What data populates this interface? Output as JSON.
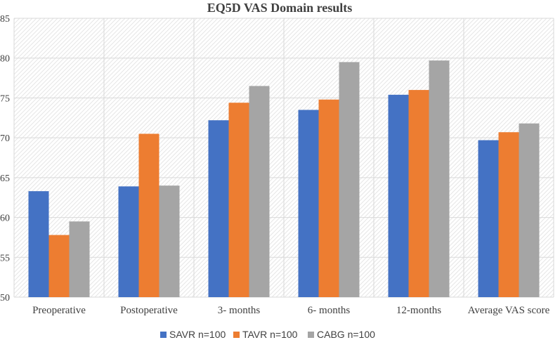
{
  "chart_data": {
    "type": "bar",
    "title": "EQ5D VAS Domain results",
    "xlabel": "",
    "ylabel": "",
    "categories": [
      "Preoperative",
      "Postoperative",
      "3- months",
      "6- months",
      "12-months",
      "Average VAS score"
    ],
    "series": [
      {
        "name": "SAVR n=100",
        "color": "#4472C4",
        "values": [
          63.3,
          63.9,
          72.2,
          73.5,
          75.4,
          69.7
        ]
      },
      {
        "name": "TAVR n=100",
        "color": "#ED7D31",
        "values": [
          57.8,
          70.5,
          74.4,
          74.8,
          76.0,
          70.7
        ]
      },
      {
        "name": "CABG n=100",
        "color": "#A5A5A5",
        "values": [
          59.5,
          64.0,
          76.5,
          79.5,
          79.7,
          71.8
        ]
      }
    ],
    "ylim": [
      50,
      85
    ],
    "yticks": [
      50,
      55,
      60,
      65,
      70,
      75,
      80,
      85
    ],
    "grid": true,
    "legend_position": "bottom"
  }
}
